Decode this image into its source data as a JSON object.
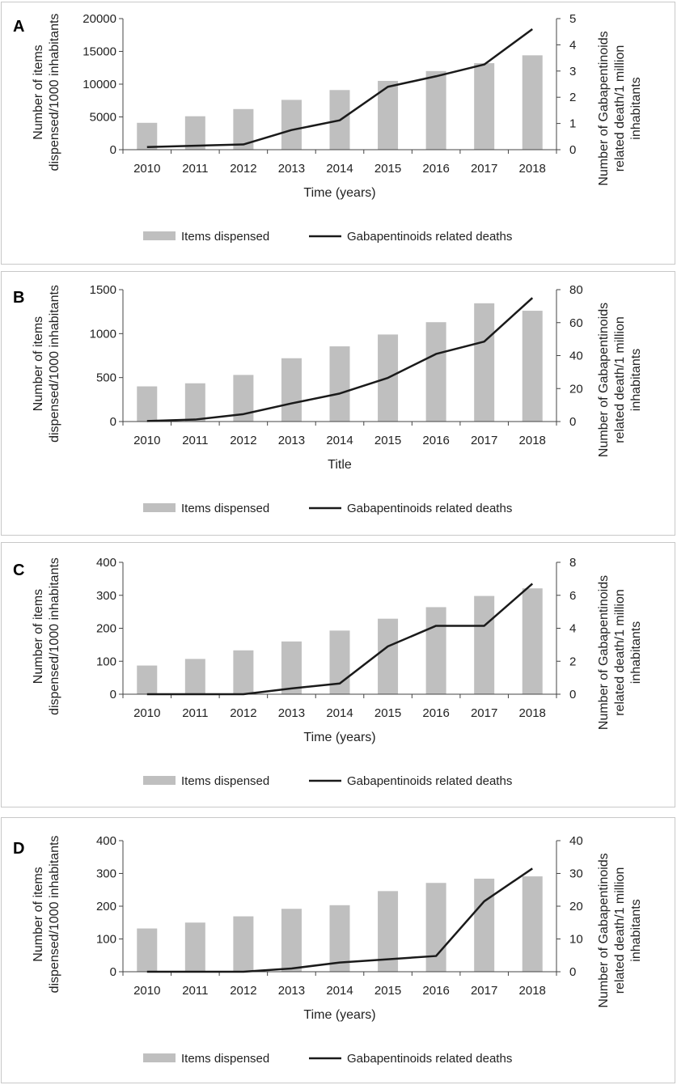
{
  "colors": {
    "bar": "#bfbfbf",
    "line": "#1a1a1a",
    "axis": "#444444"
  },
  "chart_data": [
    {
      "type": "bar",
      "panel": "A",
      "categories": [
        "2010",
        "2011",
        "2012",
        "2013",
        "2014",
        "2015",
        "2016",
        "2017",
        "2018"
      ],
      "series": [
        {
          "name": "Items dispensed",
          "kind": "bar",
          "axis": "left",
          "values": [
            4100,
            5100,
            6200,
            7600,
            9100,
            10500,
            12000,
            13200,
            14400
          ]
        },
        {
          "name": "Gabapentinoids related deaths",
          "kind": "line",
          "axis": "right",
          "values": [
            0.1,
            0.15,
            0.2,
            0.75,
            1.12,
            2.4,
            2.8,
            3.25,
            4.6
          ]
        }
      ],
      "xlabel": "Time (years)",
      "ylabel_lines": [
        "Number of items",
        "dispensed/1000 inhabitants"
      ],
      "y2label_lines": [
        "Number of Gabapentinoids",
        "related death/1 million",
        "inhabitants"
      ],
      "ylim": [
        0,
        20000
      ],
      "yticks": [
        0,
        5000,
        10000,
        15000,
        20000
      ],
      "y2lim": [
        0,
        5
      ],
      "y2ticks": [
        0,
        1,
        2,
        3,
        4,
        5
      ],
      "legend": {
        "bar": "Items dispensed",
        "line": "Gabapentinoids related deaths"
      }
    },
    {
      "type": "bar",
      "panel": "B",
      "categories": [
        "2010",
        "2011",
        "2012",
        "2013",
        "2014",
        "2015",
        "2016",
        "2017",
        "2018"
      ],
      "series": [
        {
          "name": "Items dispensed",
          "kind": "bar",
          "axis": "left",
          "values": [
            400,
            435,
            530,
            720,
            855,
            990,
            1130,
            1345,
            1260
          ]
        },
        {
          "name": "Gabapentinoids related deaths",
          "kind": "line",
          "axis": "right",
          "values": [
            0.3,
            1.2,
            4.5,
            11,
            17,
            26.5,
            41,
            48.5,
            75
          ]
        }
      ],
      "xlabel": "Title",
      "ylabel_lines": [
        "Number of items",
        "dispensed/1000 inhabitants"
      ],
      "y2label_lines": [
        "Number of Gabapentinoids",
        "related death/1 million",
        "inhabitants"
      ],
      "ylim": [
        0,
        1500
      ],
      "yticks": [
        0,
        500,
        1000,
        1500
      ],
      "y2lim": [
        0,
        80
      ],
      "y2ticks": [
        0,
        20,
        40,
        60,
        80
      ],
      "legend": {
        "bar": "Items dispensed",
        "line": "Gabapentinoids related deaths"
      }
    },
    {
      "type": "bar",
      "panel": "C",
      "categories": [
        "2010",
        "2011",
        "2012",
        "2013",
        "2014",
        "2015",
        "2016",
        "2017",
        "2018"
      ],
      "series": [
        {
          "name": "Items dispensed",
          "kind": "bar",
          "axis": "left",
          "values": [
            87,
            107,
            133,
            160,
            193,
            229,
            264,
            298,
            321
          ]
        },
        {
          "name": "Gabapentinoids related deaths",
          "kind": "line",
          "axis": "right",
          "values": [
            0,
            0,
            0,
            0.35,
            0.65,
            2.9,
            4.15,
            4.15,
            6.7
          ]
        }
      ],
      "xlabel": "Time (years)",
      "ylabel_lines": [
        "Number of items",
        "dispensed/1000 inhabitants"
      ],
      "y2label_lines": [
        "Number of Gabapentinoids",
        "related death/1 million",
        "inhabitants"
      ],
      "ylim": [
        0,
        400
      ],
      "yticks": [
        0,
        100,
        200,
        300,
        400
      ],
      "y2lim": [
        0,
        8
      ],
      "y2ticks": [
        0,
        2,
        4,
        6,
        8
      ],
      "legend": {
        "bar": "Items dispensed",
        "line": "Gabapentinoids related deaths"
      }
    },
    {
      "type": "bar",
      "panel": "D",
      "categories": [
        "2010",
        "2011",
        "2012",
        "2013",
        "2014",
        "2015",
        "2016",
        "2017",
        "2018"
      ],
      "series": [
        {
          "name": "Items dispensed",
          "kind": "bar",
          "axis": "left",
          "values": [
            132,
            150,
            169,
            192,
            203,
            246,
            271,
            284,
            291
          ]
        },
        {
          "name": "Gabapentinoids related deaths",
          "kind": "line",
          "axis": "right",
          "values": [
            0,
            0,
            0,
            1,
            2.8,
            3.8,
            4.8,
            21.5,
            31.5
          ]
        }
      ],
      "xlabel": "Time (years)",
      "ylabel_lines": [
        "Number of items",
        "dispensed/1000 inhabitants"
      ],
      "y2label_lines": [
        "Number of Gabapentinoids",
        "related death/1 million",
        "inhabitants"
      ],
      "ylim": [
        0,
        400
      ],
      "yticks": [
        0,
        100,
        200,
        300,
        400
      ],
      "y2lim": [
        0,
        40
      ],
      "y2ticks": [
        0,
        10,
        20,
        30,
        40
      ],
      "legend": {
        "bar": "Items dispensed",
        "line": "Gabapentinoids related deaths"
      }
    }
  ]
}
